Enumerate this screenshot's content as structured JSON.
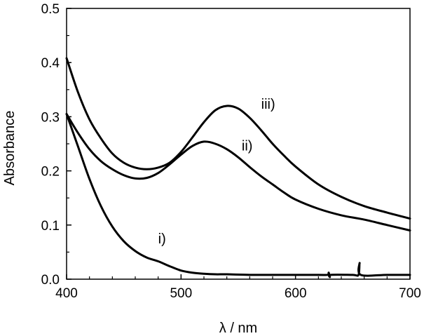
{
  "chart_data": {
    "type": "line",
    "xlabel": "λ / nm",
    "ylabel": "Absorbance",
    "xlim": [
      400,
      700
    ],
    "ylim": [
      0.0,
      0.5
    ],
    "xticks": [
      400,
      500,
      600,
      700
    ],
    "xtick_labels": [
      "400",
      "500",
      "600",
      "700"
    ],
    "yticks": [
      0.0,
      0.1,
      0.2,
      0.3,
      0.4,
      0.5
    ],
    "ytick_labels": [
      "0.0",
      "0.1",
      "0.2",
      "0.3",
      "0.4",
      "0.5"
    ],
    "grid": false,
    "legend": "none",
    "colors": {
      "line": "#000000",
      "axis": "#000000",
      "background": "#ffffff"
    },
    "series": [
      {
        "name": "i)",
        "label_at": [
          480,
          0.066
        ],
        "points": [
          [
            400,
            0.305
          ],
          [
            410,
            0.245
          ],
          [
            420,
            0.185
          ],
          [
            430,
            0.135
          ],
          [
            440,
            0.097
          ],
          [
            450,
            0.07
          ],
          [
            460,
            0.052
          ],
          [
            470,
            0.04
          ],
          [
            480,
            0.033
          ],
          [
            490,
            0.024
          ],
          [
            500,
            0.016
          ],
          [
            510,
            0.012
          ],
          [
            520,
            0.01
          ],
          [
            530,
            0.009
          ],
          [
            540,
            0.009
          ],
          [
            560,
            0.008
          ],
          [
            580,
            0.008
          ],
          [
            600,
            0.008
          ],
          [
            620,
            0.008
          ],
          [
            628,
            0.008
          ],
          [
            629,
            0.012
          ],
          [
            630,
            0.004
          ],
          [
            631,
            0.008
          ],
          [
            650,
            0.008
          ],
          [
            655,
            0.008
          ],
          [
            656,
            0.03
          ],
          [
            657,
            0.008
          ],
          [
            680,
            0.008
          ],
          [
            700,
            0.008
          ]
        ]
      },
      {
        "name": "ii)",
        "label_at": [
          553,
          0.238
        ],
        "points": [
          [
            400,
            0.305
          ],
          [
            410,
            0.27
          ],
          [
            420,
            0.24
          ],
          [
            430,
            0.218
          ],
          [
            440,
            0.203
          ],
          [
            450,
            0.192
          ],
          [
            460,
            0.186
          ],
          [
            470,
            0.187
          ],
          [
            480,
            0.196
          ],
          [
            490,
            0.212
          ],
          [
            500,
            0.23
          ],
          [
            510,
            0.246
          ],
          [
            520,
            0.254
          ],
          [
            530,
            0.25
          ],
          [
            540,
            0.24
          ],
          [
            550,
            0.225
          ],
          [
            560,
            0.207
          ],
          [
            570,
            0.19
          ],
          [
            580,
            0.175
          ],
          [
            590,
            0.16
          ],
          [
            600,
            0.147
          ],
          [
            620,
            0.13
          ],
          [
            640,
            0.118
          ],
          [
            660,
            0.11
          ],
          [
            680,
            0.1
          ],
          [
            700,
            0.09
          ]
        ]
      },
      {
        "name": "iii)",
        "label_at": [
          570,
          0.315
        ],
        "points": [
          [
            400,
            0.408
          ],
          [
            410,
            0.345
          ],
          [
            420,
            0.295
          ],
          [
            430,
            0.26
          ],
          [
            440,
            0.232
          ],
          [
            450,
            0.215
          ],
          [
            460,
            0.206
          ],
          [
            470,
            0.203
          ],
          [
            480,
            0.206
          ],
          [
            490,
            0.215
          ],
          [
            500,
            0.235
          ],
          [
            510,
            0.262
          ],
          [
            520,
            0.29
          ],
          [
            530,
            0.312
          ],
          [
            540,
            0.32
          ],
          [
            550,
            0.315
          ],
          [
            560,
            0.298
          ],
          [
            570,
            0.275
          ],
          [
            580,
            0.25
          ],
          [
            590,
            0.228
          ],
          [
            600,
            0.208
          ],
          [
            620,
            0.175
          ],
          [
            640,
            0.152
          ],
          [
            660,
            0.135
          ],
          [
            680,
            0.123
          ],
          [
            700,
            0.112
          ]
        ]
      }
    ]
  }
}
